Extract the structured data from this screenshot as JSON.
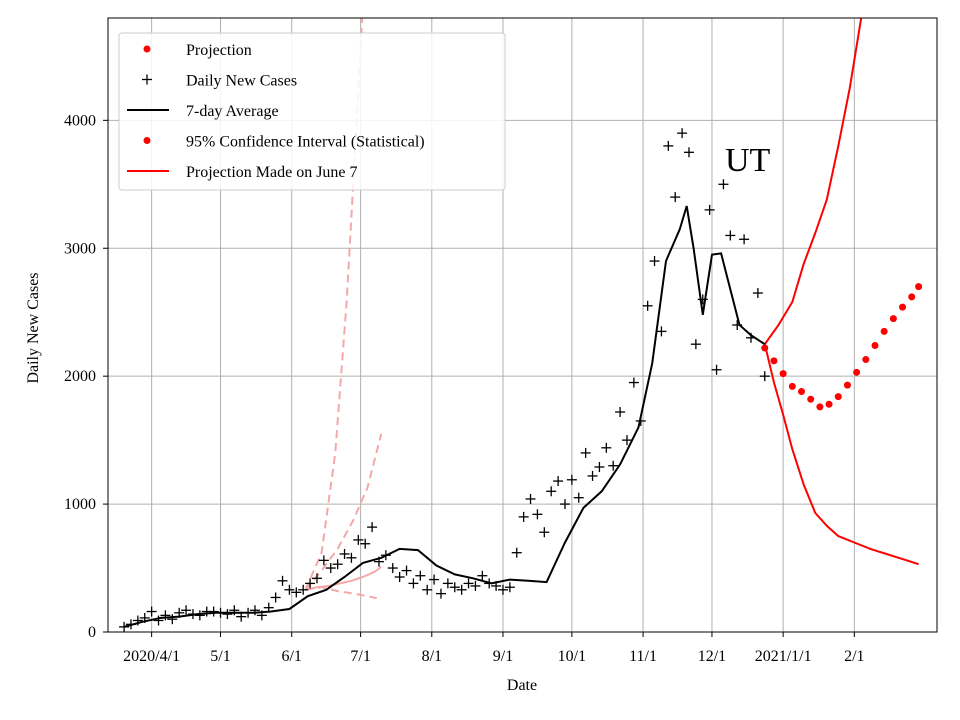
{
  "chart_data": {
    "type": "line",
    "title": "",
    "annotation": "UT",
    "xlabel": "Date",
    "ylabel": "Daily New Cases",
    "xlim": [
      "2020-03-13",
      "2021-03-09"
    ],
    "ylim": [
      0,
      4800
    ],
    "grid": true,
    "legend_placement": "top-left",
    "x_ticks": [
      {
        "date": "2020-04-01",
        "label": "2020/4/1"
      },
      {
        "date": "2020-05-01",
        "label": "5/1"
      },
      {
        "date": "2020-06-01",
        "label": "6/1"
      },
      {
        "date": "2020-07-01",
        "label": "7/1"
      },
      {
        "date": "2020-08-01",
        "label": "8/1"
      },
      {
        "date": "2020-09-01",
        "label": "9/1"
      },
      {
        "date": "2020-10-01",
        "label": "10/1"
      },
      {
        "date": "2020-11-01",
        "label": "11/1"
      },
      {
        "date": "2020-12-01",
        "label": "12/1"
      },
      {
        "date": "2021-01-01",
        "label": "2021/1/1"
      },
      {
        "date": "2021-02-01",
        "label": "2/1"
      }
    ],
    "y_ticks": [
      0,
      1000,
      2000,
      3000,
      4000
    ],
    "colors": {
      "projection": "#ff0000",
      "daily": "#000000",
      "average": "#000000",
      "confidence": "#ff0000",
      "june7": "#ff0000",
      "june7_band": "#f4a8a8"
    },
    "legend": [
      {
        "label": "Projection",
        "marker": "dot"
      },
      {
        "label": "Daily New Cases",
        "marker": "plus"
      },
      {
        "label": "7-day Average",
        "marker": "line-black"
      },
      {
        "label": "95% Confidence Interval (Statistical)",
        "marker": "dot"
      },
      {
        "label": "Projection Made on June 7",
        "marker": "line-red"
      }
    ],
    "series": [
      {
        "name": "Daily New Cases",
        "kind": "scatter",
        "x": [
          "2020-03-20",
          "2020-03-23",
          "2020-03-26",
          "2020-03-29",
          "2020-04-01",
          "2020-04-04",
          "2020-04-07",
          "2020-04-10",
          "2020-04-13",
          "2020-04-16",
          "2020-04-19",
          "2020-04-22",
          "2020-04-25",
          "2020-04-28",
          "2020-05-01",
          "2020-05-04",
          "2020-05-07",
          "2020-05-10",
          "2020-05-13",
          "2020-05-16",
          "2020-05-19",
          "2020-05-22",
          "2020-05-25",
          "2020-05-28",
          "2020-05-31",
          "2020-06-03",
          "2020-06-06",
          "2020-06-09",
          "2020-06-12",
          "2020-06-15",
          "2020-06-18",
          "2020-06-21",
          "2020-06-24",
          "2020-06-27",
          "2020-06-30",
          "2020-07-03",
          "2020-07-06",
          "2020-07-09",
          "2020-07-12",
          "2020-07-15",
          "2020-07-18",
          "2020-07-21",
          "2020-07-24",
          "2020-07-27",
          "2020-07-30",
          "2020-08-02",
          "2020-08-05",
          "2020-08-08",
          "2020-08-11",
          "2020-08-14",
          "2020-08-17",
          "2020-08-20",
          "2020-08-23",
          "2020-08-26",
          "2020-08-29",
          "2020-09-01",
          "2020-09-04",
          "2020-09-07",
          "2020-09-10",
          "2020-09-13",
          "2020-09-16",
          "2020-09-19",
          "2020-09-22",
          "2020-09-25",
          "2020-09-28",
          "2020-10-01",
          "2020-10-04",
          "2020-10-07",
          "2020-10-10",
          "2020-10-13",
          "2020-10-16",
          "2020-10-19",
          "2020-10-22",
          "2020-10-25",
          "2020-10-28",
          "2020-10-31",
          "2020-11-03",
          "2020-11-06",
          "2020-11-09",
          "2020-11-12",
          "2020-11-15",
          "2020-11-18",
          "2020-11-21",
          "2020-11-24",
          "2020-11-27",
          "2020-11-30",
          "2020-12-03",
          "2020-12-06",
          "2020-12-09",
          "2020-12-12",
          "2020-12-15",
          "2020-12-18",
          "2020-12-21",
          "2020-12-24"
        ],
        "values": [
          40,
          60,
          90,
          110,
          160,
          90,
          130,
          100,
          150,
          170,
          140,
          130,
          160,
          160,
          150,
          140,
          170,
          120,
          150,
          170,
          130,
          190,
          270,
          400,
          330,
          310,
          330,
          380,
          420,
          560,
          500,
          530,
          610,
          580,
          720,
          690,
          820,
          550,
          600,
          500,
          430,
          480,
          380,
          440,
          330,
          410,
          300,
          380,
          350,
          330,
          380,
          360,
          440,
          380,
          360,
          330,
          350,
          620,
          900,
          1040,
          920,
          780,
          1100,
          1180,
          1000,
          1190,
          1050,
          1400,
          1220,
          1290,
          1440,
          1300,
          1720,
          1500,
          1950,
          1650,
          2550,
          2900,
          2350,
          3800,
          3400,
          3900,
          3750,
          2250,
          2600,
          3300,
          2050,
          3500,
          3100,
          2400,
          3070,
          2300,
          2650,
          2000
        ]
      },
      {
        "name": "7-day Average",
        "kind": "line",
        "x": [
          "2020-03-20",
          "2020-03-28",
          "2020-04-05",
          "2020-04-13",
          "2020-04-21",
          "2020-04-29",
          "2020-05-07",
          "2020-05-15",
          "2020-05-23",
          "2020-05-31",
          "2020-06-08",
          "2020-06-16",
          "2020-06-24",
          "2020-07-02",
          "2020-07-10",
          "2020-07-18",
          "2020-07-26",
          "2020-08-03",
          "2020-08-11",
          "2020-08-19",
          "2020-08-27",
          "2020-09-04",
          "2020-09-12",
          "2020-09-20",
          "2020-09-28",
          "2020-10-06",
          "2020-10-14",
          "2020-10-22",
          "2020-10-30",
          "2020-11-05",
          "2020-11-11",
          "2020-11-17",
          "2020-11-20",
          "2020-11-23",
          "2020-11-27",
          "2020-12-01",
          "2020-12-05",
          "2020-12-09",
          "2020-12-13",
          "2020-12-18",
          "2020-12-24"
        ],
        "values": [
          40,
          80,
          110,
          120,
          140,
          150,
          150,
          150,
          160,
          180,
          280,
          330,
          430,
          540,
          580,
          650,
          640,
          520,
          450,
          420,
          380,
          410,
          400,
          390,
          700,
          970,
          1100,
          1310,
          1600,
          2100,
          2900,
          3150,
          3330,
          3000,
          2480,
          2950,
          2960,
          2680,
          2400,
          2320,
          2250
        ]
      },
      {
        "name": "Projection",
        "kind": "dots",
        "x": [
          "2020-12-24",
          "2020-12-28",
          "2021-01-01",
          "2021-01-05",
          "2021-01-09",
          "2021-01-13",
          "2021-01-17",
          "2021-01-21",
          "2021-01-25",
          "2021-01-29",
          "2021-02-02",
          "2021-02-06",
          "2021-02-10",
          "2021-02-14",
          "2021-02-18",
          "2021-02-22",
          "2021-02-26",
          "2021-03-01"
        ],
        "values": [
          2220,
          2120,
          2020,
          1920,
          1880,
          1820,
          1760,
          1780,
          1840,
          1930,
          2030,
          2130,
          2240,
          2350,
          2450,
          2540,
          2620,
          2700
        ]
      },
      {
        "name": "95% Confidence Interval (Statistical)",
        "kind": "band-upper",
        "x": [
          "2020-12-24",
          "2020-12-30",
          "2021-01-05",
          "2021-01-10",
          "2021-01-15",
          "2021-01-20",
          "2021-01-25",
          "2021-01-30",
          "2021-02-04",
          "2021-02-06"
        ],
        "values": [
          2250,
          2400,
          2580,
          2880,
          3120,
          3380,
          3800,
          4250,
          4800,
          5000
        ]
      },
      {
        "name": "95% Confidence Interval (Statistical)",
        "kind": "band-lower",
        "x": [
          "2020-12-24",
          "2020-12-28",
          "2021-01-01",
          "2021-01-05",
          "2021-01-10",
          "2021-01-15",
          "2021-01-20",
          "2021-01-25",
          "2021-02-01",
          "2021-02-08",
          "2021-02-15",
          "2021-02-22",
          "2021-03-01"
        ],
        "values": [
          2250,
          1950,
          1700,
          1430,
          1150,
          930,
          830,
          750,
          700,
          650,
          610,
          570,
          530
        ]
      },
      {
        "name": "Projection Made on June 7",
        "kind": "line",
        "x": [
          "2020-06-07",
          "2020-06-12",
          "2020-06-17",
          "2020-06-22",
          "2020-06-27",
          "2020-07-02",
          "2020-07-07",
          "2020-07-10"
        ],
        "values": [
          330,
          350,
          360,
          380,
          400,
          430,
          470,
          510
        ]
      },
      {
        "name": "Projection Made on June 7 upper",
        "kind": "band-dashed",
        "x": [
          "2020-06-07",
          "2020-06-14",
          "2020-06-20",
          "2020-06-25",
          "2020-06-29",
          "2020-07-02"
        ],
        "values": [
          330,
          620,
          1400,
          2600,
          3900,
          4900
        ]
      },
      {
        "name": "Projection Made on June 7 mid",
        "kind": "band-dashed",
        "x": [
          "2020-06-07",
          "2020-06-14",
          "2020-06-21",
          "2020-06-28",
          "2020-07-04",
          "2020-07-10"
        ],
        "values": [
          330,
          480,
          650,
          880,
          1130,
          1550
        ]
      },
      {
        "name": "Projection Made on June 7 lower",
        "kind": "band-dashed",
        "x": [
          "2020-06-07",
          "2020-06-14",
          "2020-06-21",
          "2020-06-28",
          "2020-07-04",
          "2020-07-08"
        ],
        "values": [
          330,
          350,
          320,
          300,
          280,
          265
        ]
      }
    ]
  }
}
